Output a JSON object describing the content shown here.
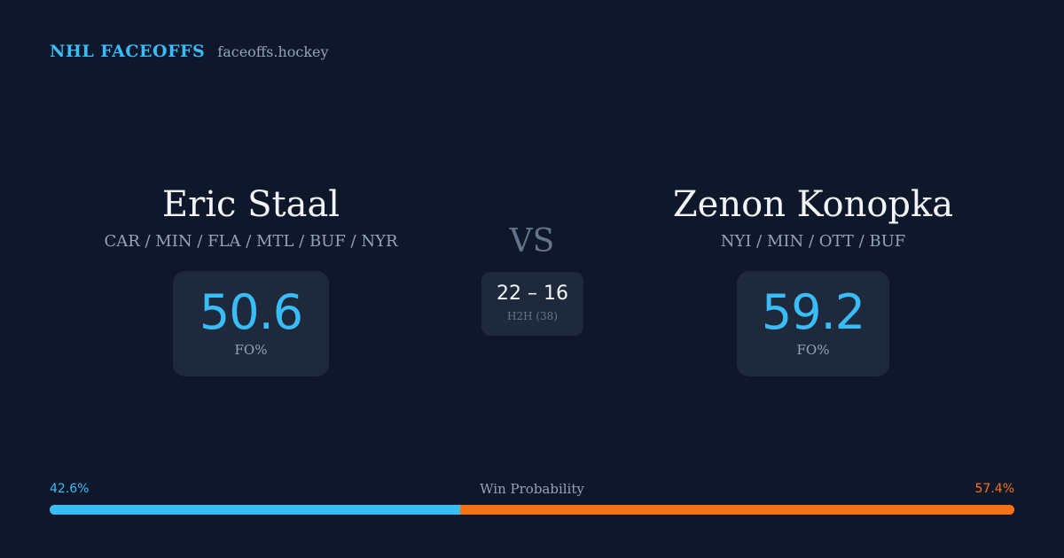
{
  "header": {
    "brand": "NHL FACEOFFS",
    "site": "faceoffs.hockey"
  },
  "player_left": {
    "name": "Eric Staal",
    "teams": "CAR / MIN / FLA / MTL / BUF / NYR",
    "fo_value": "50.6",
    "fo_label": "FO%"
  },
  "player_right": {
    "name": "Zenon Konopka",
    "teams": "NYI / MIN / OTT / BUF",
    "fo_value": "59.2",
    "fo_label": "FO%"
  },
  "versus": {
    "label": "VS",
    "h2h_score": "22 – 16",
    "h2h_label": "H2H (38)"
  },
  "win_probability": {
    "label": "Win Probability",
    "left_text": "42.6%",
    "right_text": "57.4%",
    "left_fraction": 0.426,
    "right_fraction": 0.574
  },
  "colors": {
    "background": "#0f172a",
    "card": "#1e293b",
    "accent_left": "#38bdf8",
    "accent_right": "#f97316",
    "muted_text": "#94a3b8"
  }
}
